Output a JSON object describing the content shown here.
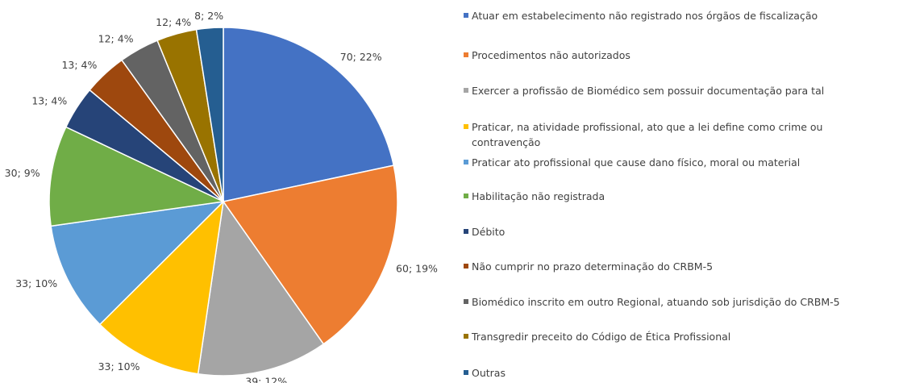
{
  "chart_data": {
    "type": "pie",
    "categories": [
      "Atuar em estabelecimento não registrado nos órgãos de fiscalização",
      "Procedimentos não autorizados",
      "Exercer a profissão de Biomédico sem possuir documentação para tal",
      "Praticar, na atividade profissional, ato que a lei define como crime ou contravenção",
      "Praticar ato profissional que cause dano físico, moral ou material",
      "Habilitação não registrada",
      "Débito",
      "Não cumprir no prazo determinação do CRBM-5",
      "Biomédico inscrito em outro Regional, atuando sob jurisdição do CRBM-5",
      "Transgredir preceito do Código de Ética Profissional",
      "Outras"
    ],
    "values": [
      70,
      60,
      39,
      33,
      33,
      30,
      13,
      13,
      12,
      12,
      8
    ],
    "value_labels": [
      "70; 22%",
      "60; 19%",
      "39; 12%",
      "33; 10%",
      "33; 10%",
      "30; 9%",
      "13; 4%",
      "13; 4%",
      "12; 4%",
      "12; 4%",
      "8; 2%"
    ],
    "colors": [
      "#4472c4",
      "#ed7d31",
      "#a5a5a5",
      "#ffc000",
      "#5b9bd5",
      "#70ad47",
      "#264478",
      "#9e480e",
      "#636363",
      "#997300",
      "#255e91"
    ],
    "legend": "right"
  }
}
